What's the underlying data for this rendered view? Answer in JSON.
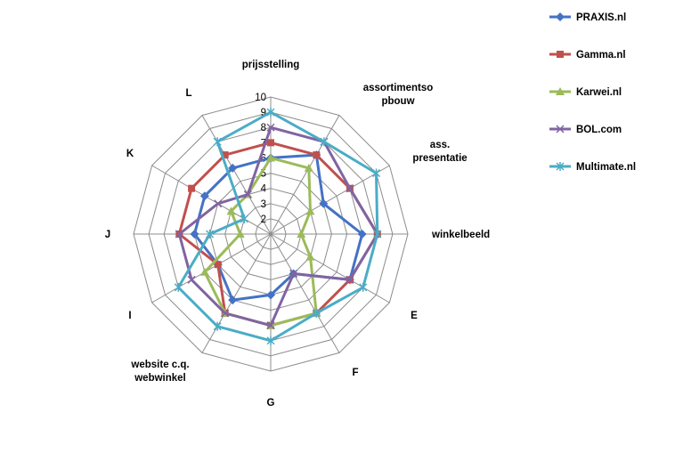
{
  "chart_data": {
    "type": "radar",
    "title": "",
    "categories": [
      "prijsstelling",
      "assortimentsopbouw",
      "ass. presentatie",
      "winkelbeeld",
      "E",
      "F",
      "G",
      "website c.q. webwinkel",
      "I",
      "J",
      "K",
      "L"
    ],
    "category_lines": [
      [
        "prijsstelling"
      ],
      [
        "assortimentso",
        "pbouw"
      ],
      [
        "ass.",
        "presentatie"
      ],
      [
        "winkelbeeld"
      ],
      [
        "E"
      ],
      [
        "F"
      ],
      [
        "G"
      ],
      [
        "website c.q.",
        "webwinkel"
      ],
      [
        "I"
      ],
      [
        "J"
      ],
      [
        "K"
      ],
      [
        "L"
      ]
    ],
    "rlim": [
      1,
      10
    ],
    "ticks": [
      2,
      3,
      4,
      5,
      6,
      7,
      8,
      9,
      10
    ],
    "grid": true,
    "legend_position": "right",
    "series": [
      {
        "name": "PRAXIS.nl",
        "color": "#4472C4",
        "marker": "diamond",
        "values": [
          6,
          7,
          5,
          7,
          7,
          4,
          5,
          6,
          5,
          6,
          6,
          6
        ]
      },
      {
        "name": "Gamma.nl",
        "color": "#C0504D",
        "marker": "square",
        "values": [
          7,
          7,
          7,
          8,
          7,
          7,
          7,
          7,
          5,
          7,
          7,
          7
        ]
      },
      {
        "name": "Karwei.nl",
        "color": "#9BBB59",
        "marker": "triangle",
        "values": [
          6,
          6,
          4,
          3,
          4,
          7,
          7,
          7,
          6,
          3,
          4,
          4
        ]
      },
      {
        "name": "BOL.com",
        "color": "#8064A2",
        "marker": "x",
        "values": [
          8,
          8,
          7,
          8,
          7,
          4,
          7,
          7,
          7,
          7,
          5,
          4
        ]
      },
      {
        "name": "Multimate.nl",
        "color": "#4BACC6",
        "marker": "star",
        "values": [
          9,
          8,
          9,
          8,
          8,
          7,
          8,
          8,
          8,
          5,
          3,
          8
        ]
      }
    ]
  }
}
